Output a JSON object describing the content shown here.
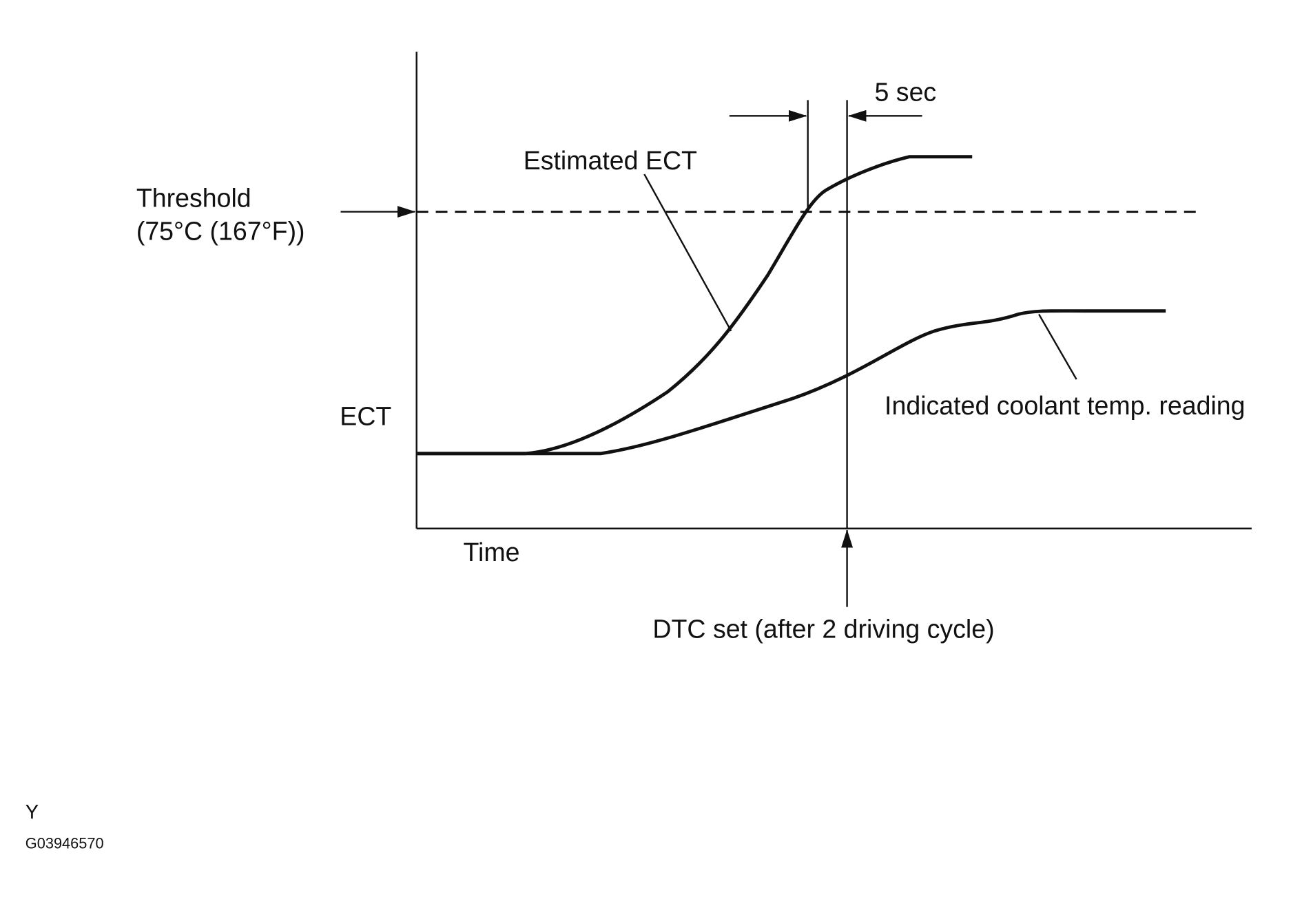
{
  "labels": {
    "interval": "5 sec",
    "estimated": "Estimated ECT",
    "threshold": "Threshold",
    "threshold_value": "(75°C (167°F))",
    "y_axis": "ECT",
    "x_axis": "Time",
    "indicated": "Indicated coolant temp. reading",
    "dtc": "DTC set (after 2 driving cycle)"
  },
  "footer": {
    "code": "Y",
    "figure_id": "G03946570"
  }
}
